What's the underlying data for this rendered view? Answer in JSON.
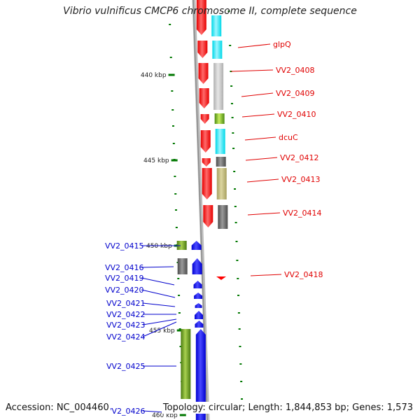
{
  "title": "Vibrio vulnificus CMCP6 chromosome II, complete sequence",
  "footer": {
    "accession": "Accession: NC_004460",
    "summary": "Topology: circular; Length: 1,844,853 bp; Genes: 1,573"
  },
  "colors": {
    "backbone": "#9a9a9a",
    "forward_label": "#e00000",
    "reverse_label": "#0000cc",
    "gene_red": "#ff0000",
    "gene_blue": "#0000ee",
    "tick": "#007700"
  },
  "scale": {
    "unit": "kbp",
    "labeled_ticks": [
      {
        "kbp": 440,
        "label": "440 kbp"
      },
      {
        "kbp": 445,
        "label": "445 kbp"
      },
      {
        "kbp": 450,
        "label": "450 kbp"
      },
      {
        "kbp": 455,
        "label": "455 kbp"
      },
      {
        "kbp": 460,
        "label": "460 kbp"
      }
    ]
  },
  "forward_labels": [
    "glpQ",
    "VV2_0408",
    "VV2_0409",
    "VV2_0410",
    "dcuC",
    "VV2_0412",
    "VV2_0413",
    "VV2_0414",
    "VV2_0418"
  ],
  "reverse_labels": [
    "VV2_0415",
    "VV2_0416",
    "VV2_0419",
    "VV2_0420",
    "VV2_0421",
    "VV2_0422",
    "VV2_0423",
    "VV2_0424",
    "VV2_0425",
    "VV2_0426"
  ]
}
